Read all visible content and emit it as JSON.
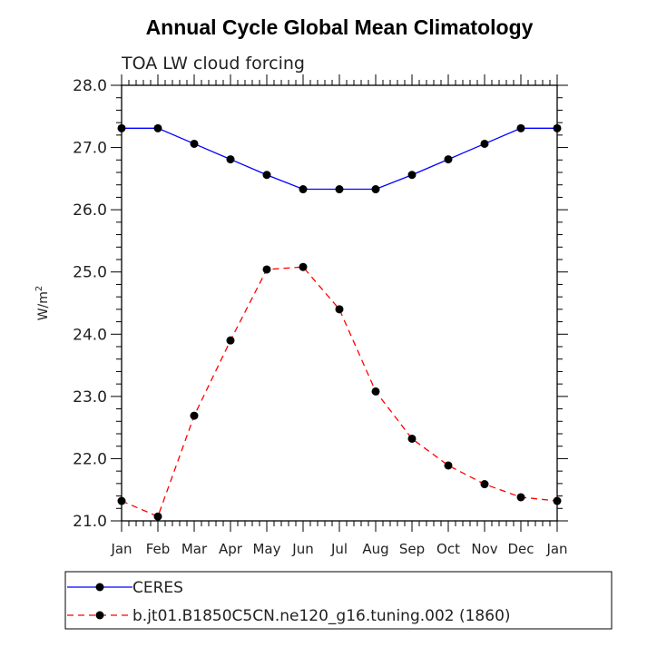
{
  "chart_data": {
    "type": "line",
    "title": "Annual Cycle Global Mean Climatology",
    "subtitle": "TOA LW cloud forcing",
    "xlabel": "",
    "ylabel_base": "W/m",
    "ylabel_exp": "2",
    "categories": [
      "Jan",
      "Feb",
      "Mar",
      "Apr",
      "May",
      "Jun",
      "Jul",
      "Aug",
      "Sep",
      "Oct",
      "Nov",
      "Dec",
      "Jan"
    ],
    "ylim": [
      21.0,
      28.0
    ],
    "yticks": [
      "21.0",
      "22.0",
      "23.0",
      "24.0",
      "25.0",
      "26.0",
      "27.0",
      "28.0"
    ],
    "legend_position": "bottom",
    "series": [
      {
        "name": "CERES",
        "color": "#0000ff",
        "dash": "solid",
        "values": [
          27.31,
          27.31,
          27.06,
          26.81,
          26.56,
          26.33,
          26.33,
          26.33,
          26.56,
          26.81,
          27.06,
          27.31,
          27.31
        ]
      },
      {
        "name": "b.jt01.B1850C5CN.ne120_g16.tuning.002 (1860)",
        "color": "#ff0000",
        "dash": "dashed",
        "values": [
          21.32,
          21.07,
          22.69,
          23.9,
          25.04,
          25.08,
          24.4,
          23.08,
          22.32,
          21.89,
          21.59,
          21.38,
          21.32
        ]
      }
    ]
  }
}
